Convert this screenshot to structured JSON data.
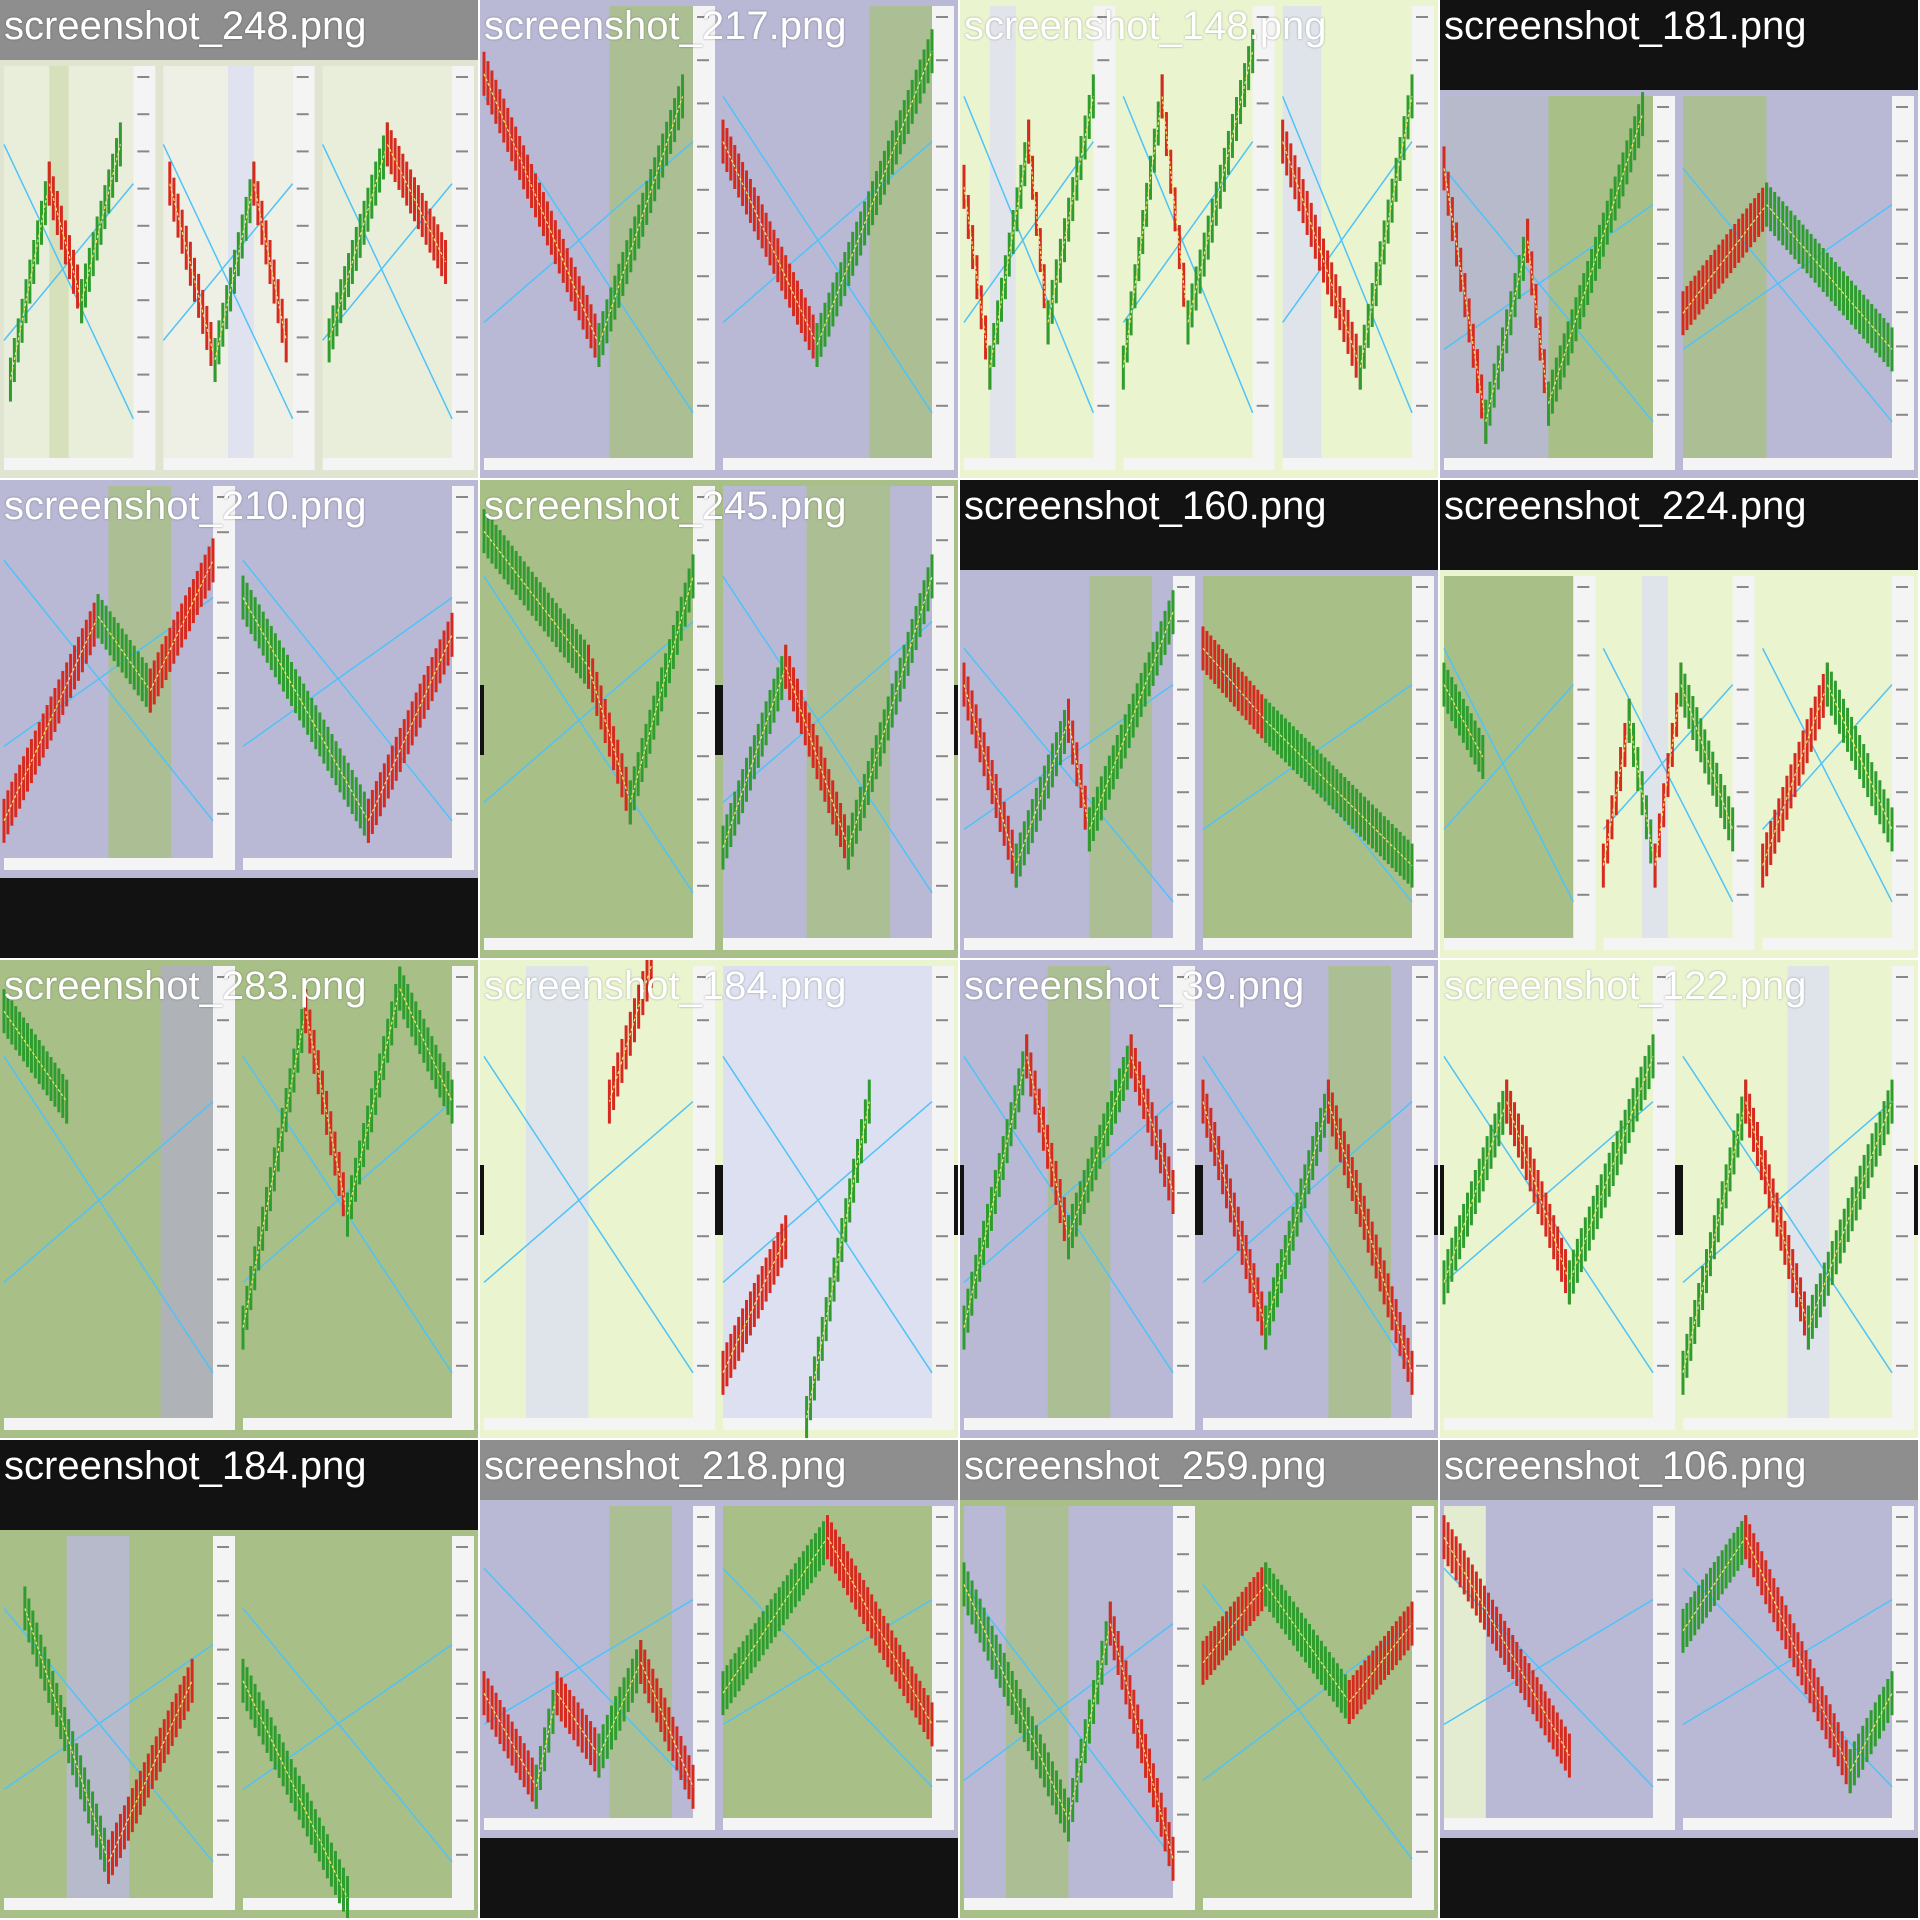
{
  "thumbnails": [
    {
      "label": "screenshot_248.png",
      "theme": "top-gray",
      "bg": "#dfe5d0",
      "panes": [
        {
          "bg": "#e9eedb",
          "bands": [
            [
              "#d2ddb4",
              0.35,
              0.15
            ]
          ],
          "legs": [
            [
              "g",
              0.05,
              0.8,
              0.35,
              0.3
            ],
            [
              "r",
              0.35,
              0.3,
              0.6,
              0.6
            ],
            [
              "g",
              0.6,
              0.6,
              0.9,
              0.2
            ]
          ]
        },
        {
          "bg": "#eef0e6",
          "bands": [
            [
              "#dde0f0",
              0.5,
              0.2
            ]
          ],
          "legs": [
            [
              "r",
              0.05,
              0.3,
              0.4,
              0.75
            ],
            [
              "g",
              0.4,
              0.75,
              0.7,
              0.3
            ],
            [
              "r",
              0.7,
              0.3,
              0.95,
              0.7
            ]
          ]
        },
        {
          "bg": "#e9eedb",
          "bands": [],
          "legs": [
            [
              "g",
              0.05,
              0.7,
              0.5,
              0.2
            ],
            [
              "r",
              0.5,
              0.2,
              0.95,
              0.5
            ]
          ]
        }
      ]
    },
    {
      "label": "screenshot_217.png",
      "theme": "green-purple",
      "bg": "#b9b9d6",
      "panes": [
        {
          "bg": "#b9b9d6",
          "bands": [
            [
              "#a9bf88",
              0.6,
              0.4
            ]
          ],
          "legs": [
            [
              "r",
              0.0,
              0.15,
              0.55,
              0.75
            ],
            [
              "g",
              0.55,
              0.75,
              0.95,
              0.2
            ]
          ]
        },
        {
          "bg": "#b9b9d6",
          "bands": [
            [
              "#a9bf88",
              0.7,
              0.3
            ]
          ],
          "legs": [
            [
              "r",
              0.0,
              0.3,
              0.45,
              0.75
            ],
            [
              "g",
              0.45,
              0.75,
              1.0,
              0.1
            ]
          ]
        }
      ]
    },
    {
      "label": "screenshot_148.png",
      "theme": "light-green",
      "bg": "#eaf5cf",
      "panes": [
        {
          "bg": "#eaf5cf",
          "bands": [
            [
              "#e0e0f0",
              0.2,
              0.2
            ]
          ],
          "legs": [
            [
              "r",
              0.0,
              0.4,
              0.2,
              0.8
            ],
            [
              "g",
              0.2,
              0.8,
              0.5,
              0.3
            ],
            [
              "r",
              0.5,
              0.3,
              0.65,
              0.7
            ],
            [
              "g",
              0.65,
              0.7,
              1.0,
              0.2
            ]
          ]
        },
        {
          "bg": "#eaf5cf",
          "bands": [],
          "legs": [
            [
              "g",
              0.0,
              0.8,
              0.3,
              0.2
            ],
            [
              "r",
              0.3,
              0.2,
              0.5,
              0.7
            ],
            [
              "g",
              0.5,
              0.7,
              1.0,
              0.1
            ]
          ]
        },
        {
          "bg": "#eaf5cf",
          "bands": [
            [
              "#dde0f0",
              0.0,
              0.3
            ]
          ],
          "legs": [
            [
              "r",
              0.0,
              0.3,
              0.6,
              0.8
            ],
            [
              "g",
              0.6,
              0.8,
              1.0,
              0.2
            ]
          ]
        }
      ]
    },
    {
      "label": "screenshot_181.png",
      "theme": "dark-top",
      "bg": "#b9b9d6",
      "panes": [
        {
          "bg": "#a9bf88",
          "bands": [
            [
              "#b9b9d6",
              0.0,
              0.5
            ]
          ],
          "legs": [
            [
              "r",
              0.0,
              0.2,
              0.2,
              0.9
            ],
            [
              "g",
              0.2,
              0.9,
              0.4,
              0.4
            ],
            [
              "r",
              0.4,
              0.4,
              0.5,
              0.85
            ],
            [
              "g",
              0.5,
              0.85,
              0.95,
              0.05
            ]
          ]
        },
        {
          "bg": "#b9b9d6",
          "bands": [
            [
              "#a9bf88",
              0.0,
              0.4
            ]
          ],
          "legs": [
            [
              "r",
              0.0,
              0.6,
              0.4,
              0.3
            ],
            [
              "g",
              0.4,
              0.3,
              1.0,
              0.7
            ]
          ]
        }
      ]
    },
    {
      "label": "screenshot_210.png",
      "theme": "bottom-dark",
      "bg": "#b9b9d6",
      "panes": [
        {
          "bg": "#b9b9d6",
          "bands": [
            [
              "#a9bf88",
              0.5,
              0.3
            ]
          ],
          "legs": [
            [
              "r",
              0.0,
              0.9,
              0.45,
              0.35
            ],
            [
              "g",
              0.45,
              0.35,
              0.7,
              0.55
            ],
            [
              "r",
              0.7,
              0.55,
              1.0,
              0.2
            ]
          ]
        },
        {
          "bg": "#b9b9d6",
          "bands": [],
          "legs": [
            [
              "g",
              0.0,
              0.3,
              0.6,
              0.9
            ],
            [
              "r",
              0.6,
              0.9,
              1.0,
              0.4
            ]
          ]
        }
      ]
    },
    {
      "label": "screenshot_245.png",
      "theme": "mid-dark",
      "bg": "#a9bf88",
      "panes": [
        {
          "bg": "#a9bf88",
          "bands": [],
          "legs": [
            [
              "g",
              0.0,
              0.1,
              0.5,
              0.4
            ],
            [
              "r",
              0.5,
              0.4,
              0.7,
              0.7
            ],
            [
              "g",
              0.7,
              0.7,
              1.0,
              0.2
            ]
          ]
        },
        {
          "bg": "#b9b9d6",
          "bands": [
            [
              "#a9bf88",
              0.4,
              0.4
            ]
          ],
          "legs": [
            [
              "g",
              0.0,
              0.8,
              0.3,
              0.4
            ],
            [
              "r",
              0.3,
              0.4,
              0.6,
              0.8
            ],
            [
              "g",
              0.6,
              0.8,
              1.0,
              0.2
            ]
          ]
        }
      ]
    },
    {
      "label": "screenshot_160.png",
      "theme": "top-dark",
      "bg": "#b9b9d6",
      "panes": [
        {
          "bg": "#b9b9d6",
          "bands": [
            [
              "#a9bf88",
              0.6,
              0.3
            ]
          ],
          "legs": [
            [
              "r",
              0.0,
              0.3,
              0.25,
              0.8
            ],
            [
              "g",
              0.25,
              0.8,
              0.5,
              0.4
            ],
            [
              "r",
              0.5,
              0.4,
              0.6,
              0.7
            ],
            [
              "g",
              0.6,
              0.7,
              1.0,
              0.1
            ]
          ]
        },
        {
          "bg": "#a9bf88",
          "bands": [],
          "legs": [
            [
              "r",
              0.0,
              0.2,
              0.3,
              0.4
            ],
            [
              "g",
              0.3,
              0.4,
              1.0,
              0.8
            ]
          ]
        }
      ]
    },
    {
      "label": "screenshot_224.png",
      "theme": "top-dark",
      "bg": "#eaf5cf",
      "panes": [
        {
          "bg": "#a9bf88",
          "bands": [],
          "legs": [
            [
              "g",
              0.0,
              0.3,
              0.3,
              0.5
            ]
          ]
        },
        {
          "bg": "#eaf5cf",
          "bands": [
            [
              "#dde0f0",
              0.3,
              0.2
            ]
          ],
          "legs": [
            [
              "r",
              0.0,
              0.8,
              0.2,
              0.4
            ],
            [
              "g",
              0.2,
              0.4,
              0.4,
              0.8
            ],
            [
              "r",
              0.4,
              0.8,
              0.6,
              0.3
            ],
            [
              "g",
              0.6,
              0.3,
              1.0,
              0.7
            ]
          ]
        },
        {
          "bg": "#eaf5cf",
          "bands": [],
          "legs": [
            [
              "r",
              0.0,
              0.8,
              0.5,
              0.3
            ],
            [
              "g",
              0.5,
              0.3,
              1.0,
              0.7
            ]
          ]
        }
      ]
    },
    {
      "label": "screenshot_283.png",
      "theme": "plain",
      "bg": "#a9bf88",
      "panes": [
        {
          "bg": "#a9bf88",
          "bands": [
            [
              "#b0b0c0",
              0.75,
              0.25
            ]
          ],
          "legs": [
            [
              "g",
              0.0,
              0.1,
              0.3,
              0.3
            ]
          ]
        },
        {
          "bg": "#a9bf88",
          "bands": [],
          "legs": [
            [
              "g",
              0.0,
              0.8,
              0.3,
              0.1
            ],
            [
              "r",
              0.3,
              0.1,
              0.5,
              0.55
            ],
            [
              "g",
              0.5,
              0.55,
              0.75,
              0.05
            ],
            [
              "g",
              0.75,
              0.05,
              1.0,
              0.3
            ]
          ]
        }
      ]
    },
    {
      "label": "screenshot_184.png",
      "theme": "mid-dark-mirror",
      "bg": "#eaf5cf",
      "panes": [
        {
          "bg": "#eaf5cf",
          "bands": [
            [
              "#dde0f0",
              0.2,
              0.3
            ]
          ],
          "legs": [
            [
              "r",
              0.8,
              0.0,
              0.6,
              0.3
            ]
          ]
        },
        {
          "bg": "#dde0f0",
          "bands": [],
          "legs": [
            [
              "g",
              0.4,
              1.0,
              0.7,
              0.3
            ],
            [
              "r",
              0.0,
              0.9,
              0.3,
              0.6
            ]
          ]
        }
      ]
    },
    {
      "label": "screenshot_39.png",
      "theme": "mid-dark",
      "bg": "#b9b9d6",
      "panes": [
        {
          "bg": "#b9b9d6",
          "bands": [
            [
              "#a9bf88",
              0.4,
              0.3
            ]
          ],
          "legs": [
            [
              "g",
              0.0,
              0.8,
              0.3,
              0.2
            ],
            [
              "r",
              0.3,
              0.2,
              0.5,
              0.6
            ],
            [
              "g",
              0.5,
              0.6,
              0.8,
              0.2
            ],
            [
              "r",
              0.8,
              0.2,
              1.0,
              0.5
            ]
          ]
        },
        {
          "bg": "#b9b9d6",
          "bands": [
            [
              "#a9bf88",
              0.6,
              0.3
            ]
          ],
          "legs": [
            [
              "r",
              0.0,
              0.3,
              0.3,
              0.8
            ],
            [
              "g",
              0.3,
              0.8,
              0.6,
              0.3
            ],
            [
              "r",
              0.6,
              0.3,
              1.0,
              0.9
            ]
          ]
        }
      ]
    },
    {
      "label": "screenshot_122.png",
      "theme": "mid-dark",
      "bg": "#eaf5cf",
      "panes": [
        {
          "bg": "#eaf5cf",
          "bands": [],
          "legs": [
            [
              "g",
              0.0,
              0.7,
              0.3,
              0.3
            ],
            [
              "r",
              0.3,
              0.3,
              0.6,
              0.7
            ],
            [
              "g",
              0.6,
              0.7,
              1.0,
              0.2
            ]
          ]
        },
        {
          "bg": "#eaf5cf",
          "bands": [
            [
              "#dde0f0",
              0.5,
              0.2
            ]
          ],
          "legs": [
            [
              "g",
              0.0,
              0.9,
              0.3,
              0.3
            ],
            [
              "r",
              0.3,
              0.3,
              0.6,
              0.8
            ],
            [
              "g",
              0.6,
              0.8,
              1.0,
              0.3
            ]
          ]
        }
      ]
    },
    {
      "label": "screenshot_184.png",
      "theme": "top-dark",
      "bg": "#a9bf88",
      "panes": [
        {
          "bg": "#a9bf88",
          "bands": [
            [
              "#b9b9d6",
              0.3,
              0.3
            ]
          ],
          "legs": [
            [
              "g",
              0.1,
              0.2,
              0.5,
              0.9
            ],
            [
              "r",
              0.5,
              0.9,
              0.9,
              0.4
            ]
          ]
        },
        {
          "bg": "#a9bf88",
          "bands": [],
          "legs": [
            [
              "g",
              0.0,
              0.4,
              0.5,
              1.0
            ]
          ]
        }
      ]
    },
    {
      "label": "screenshot_218.png",
      "theme": "top-gray-bottom-dark",
      "bg": "#b9b9d6",
      "panes": [
        {
          "bg": "#b9b9d6",
          "bands": [
            [
              "#a9bf88",
              0.6,
              0.3
            ]
          ],
          "legs": [
            [
              "r",
              0.0,
              0.6,
              0.25,
              0.9
            ],
            [
              "g",
              0.25,
              0.9,
              0.35,
              0.6
            ],
            [
              "r",
              0.35,
              0.6,
              0.55,
              0.8
            ],
            [
              "g",
              0.55,
              0.8,
              0.75,
              0.5
            ],
            [
              "r",
              0.75,
              0.5,
              1.0,
              0.9
            ]
          ]
        },
        {
          "bg": "#a9bf88",
          "bands": [],
          "legs": [
            [
              "g",
              0.0,
              0.6,
              0.5,
              0.1
            ],
            [
              "r",
              0.5,
              0.1,
              1.0,
              0.7
            ]
          ]
        }
      ]
    },
    {
      "label": "screenshot_259.png",
      "theme": "top-gray",
      "bg": "#a9bf88",
      "panes": [
        {
          "bg": "#b9b9d6",
          "bands": [
            [
              "#a9bf88",
              0.2,
              0.3
            ]
          ],
          "legs": [
            [
              "g",
              0.0,
              0.2,
              0.5,
              0.8
            ],
            [
              "g",
              0.5,
              0.8,
              0.7,
              0.3
            ],
            [
              "r",
              0.7,
              0.3,
              1.0,
              0.9
            ]
          ]
        },
        {
          "bg": "#a9bf88",
          "bands": [],
          "legs": [
            [
              "r",
              0.0,
              0.4,
              0.3,
              0.2
            ],
            [
              "g",
              0.3,
              0.2,
              0.7,
              0.5
            ],
            [
              "r",
              0.7,
              0.5,
              1.0,
              0.3
            ]
          ]
        }
      ]
    },
    {
      "label": "screenshot_106.png",
      "theme": "top-gray-bottom-dark",
      "bg": "#b9b9d6",
      "panes": [
        {
          "bg": "#b9b9d6",
          "bands": [
            [
              "#eaf5cf",
              0.0,
              0.2
            ]
          ],
          "legs": [
            [
              "r",
              0.0,
              0.1,
              0.6,
              0.8
            ]
          ]
        },
        {
          "bg": "#b9b9d6",
          "bands": [],
          "legs": [
            [
              "g",
              0.0,
              0.4,
              0.3,
              0.1
            ],
            [
              "r",
              0.3,
              0.1,
              0.8,
              0.85
            ],
            [
              "g",
              0.8,
              0.85,
              1.0,
              0.6
            ]
          ]
        }
      ]
    }
  ]
}
